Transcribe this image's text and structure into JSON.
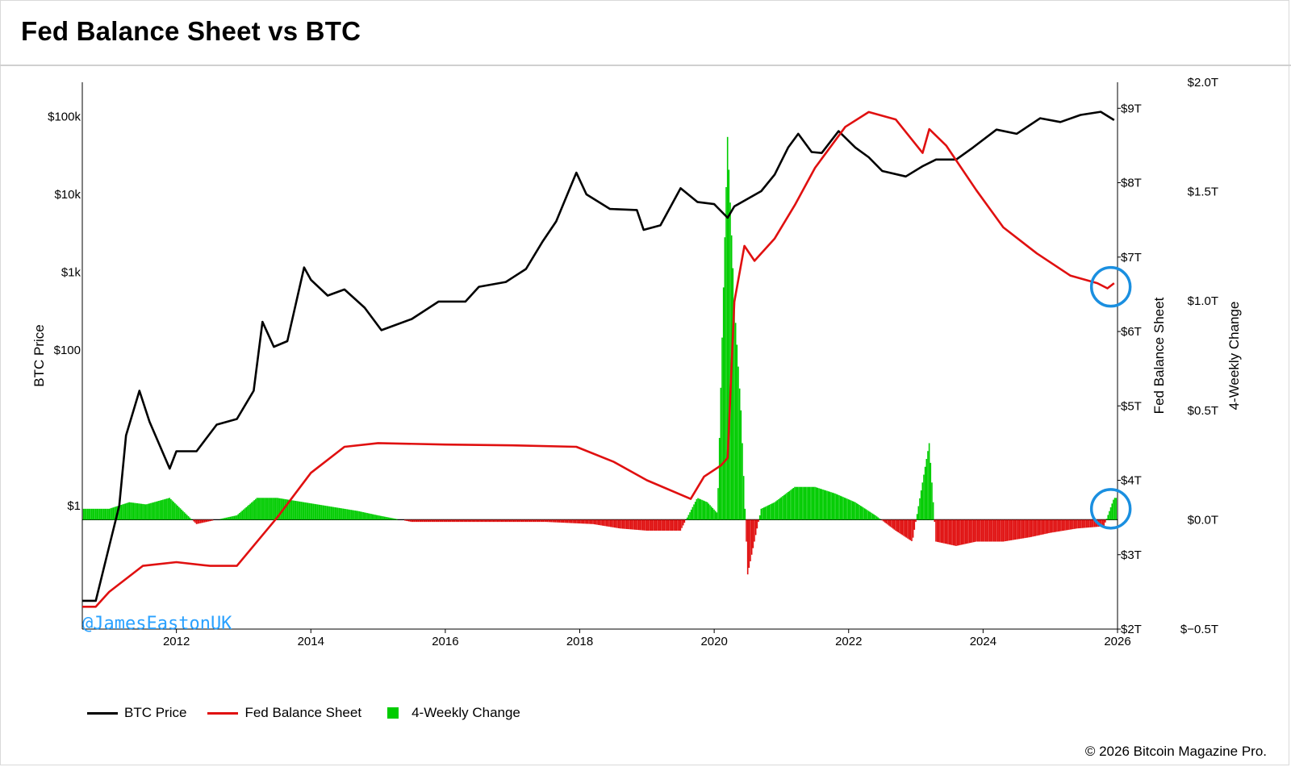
{
  "title": "Fed Balance Sheet vs BTC",
  "watermark": "@JamesEastonUK",
  "copyright": "© 2026 Bitcoin Magazine Pro.",
  "legend": [
    {
      "label": "BTC Price",
      "color": "#000000",
      "kind": "line"
    },
    {
      "label": "Fed Balance Sheet",
      "color": "#e01010",
      "kind": "line"
    },
    {
      "label": "4-Weekly Change",
      "color": "#00cc00",
      "kind": "bar"
    }
  ],
  "chart_data": {
    "type": "line",
    "x_ticks": [
      "2012",
      "2014",
      "2016",
      "2018",
      "2020",
      "2022",
      "2024",
      "2026"
    ],
    "xlim": [
      2010.6,
      2026.0
    ],
    "axes": {
      "btc": {
        "label": "BTC Price",
        "scale": "log",
        "ticks": [
          "$1",
          "$100",
          "$1k",
          "$10k",
          "$100k"
        ],
        "tick_values": [
          1,
          100,
          1000,
          10000,
          100000
        ]
      },
      "fed": {
        "label": "Fed Balance Sheet",
        "ticks": [
          "$2T",
          "$3T",
          "$4T",
          "$5T",
          "$6T",
          "$7T",
          "$8T",
          "$9T"
        ],
        "tick_values": [
          2,
          3,
          4,
          5,
          6,
          7,
          8,
          9
        ],
        "ylim": [
          2,
          9.35
        ]
      },
      "change": {
        "label": "4-Weekly Change",
        "ticks": [
          "$−0.5T",
          "$0.0T",
          "$0.5T",
          "$1.0T",
          "$1.5T",
          "$2.0T"
        ],
        "tick_values": [
          -0.5,
          0,
          0.5,
          1.0,
          1.5,
          2.0
        ],
        "ylim": [
          -0.5,
          2.0
        ]
      }
    },
    "series": [
      {
        "name": "BTC Price",
        "color": "#000000",
        "axis": "btc",
        "points": [
          [
            2010.6,
            0.06
          ],
          [
            2010.8,
            0.06
          ],
          [
            2011.0,
            0.3
          ],
          [
            2011.15,
            1.0
          ],
          [
            2011.25,
            8.0
          ],
          [
            2011.45,
            30.0
          ],
          [
            2011.6,
            12.0
          ],
          [
            2011.9,
            3.0
          ],
          [
            2012.0,
            5.0
          ],
          [
            2012.3,
            5.0
          ],
          [
            2012.6,
            11.0
          ],
          [
            2012.9,
            13.0
          ],
          [
            2013.15,
            30.0
          ],
          [
            2013.28,
            230.0
          ],
          [
            2013.45,
            110.0
          ],
          [
            2013.65,
            130.0
          ],
          [
            2013.9,
            1150.0
          ],
          [
            2014.0,
            800.0
          ],
          [
            2014.25,
            500.0
          ],
          [
            2014.5,
            600.0
          ],
          [
            2014.8,
            350.0
          ],
          [
            2015.05,
            180.0
          ],
          [
            2015.5,
            250.0
          ],
          [
            2015.9,
            420.0
          ],
          [
            2016.3,
            420.0
          ],
          [
            2016.5,
            650.0
          ],
          [
            2016.9,
            750.0
          ],
          [
            2017.2,
            1100.0
          ],
          [
            2017.45,
            2500.0
          ],
          [
            2017.65,
            4500.0
          ],
          [
            2017.95,
            19000.0
          ],
          [
            2018.1,
            10000.0
          ],
          [
            2018.45,
            6500.0
          ],
          [
            2018.85,
            6300.0
          ],
          [
            2018.95,
            3500.0
          ],
          [
            2019.2,
            4000.0
          ],
          [
            2019.5,
            12000.0
          ],
          [
            2019.75,
            8000.0
          ],
          [
            2020.0,
            7500.0
          ],
          [
            2020.2,
            5000.0
          ],
          [
            2020.3,
            7000.0
          ],
          [
            2020.7,
            11000.0
          ],
          [
            2020.9,
            18000.0
          ],
          [
            2021.1,
            40000.0
          ],
          [
            2021.25,
            60000.0
          ],
          [
            2021.45,
            35000.0
          ],
          [
            2021.6,
            34000.0
          ],
          [
            2021.85,
            65000.0
          ],
          [
            2022.1,
            40000.0
          ],
          [
            2022.3,
            30000.0
          ],
          [
            2022.5,
            20000.0
          ],
          [
            2022.85,
            17000.0
          ],
          [
            2023.1,
            23000.0
          ],
          [
            2023.3,
            28000.0
          ],
          [
            2023.6,
            28000.0
          ],
          [
            2023.85,
            40000.0
          ],
          [
            2024.2,
            68000.0
          ],
          [
            2024.5,
            60000.0
          ],
          [
            2024.85,
            95000.0
          ],
          [
            2025.15,
            85000.0
          ],
          [
            2025.45,
            105000.0
          ],
          [
            2025.75,
            115000.0
          ],
          [
            2025.95,
            90000.0
          ]
        ]
      },
      {
        "name": "Fed Balance Sheet",
        "color": "#e01010",
        "axis": "fed",
        "points": [
          [
            2010.6,
            2.3
          ],
          [
            2010.8,
            2.3
          ],
          [
            2011.0,
            2.5
          ],
          [
            2011.5,
            2.85
          ],
          [
            2012.0,
            2.9
          ],
          [
            2012.5,
            2.85
          ],
          [
            2012.9,
            2.85
          ],
          [
            2013.5,
            3.5
          ],
          [
            2014.0,
            4.1
          ],
          [
            2014.5,
            4.45
          ],
          [
            2015.0,
            4.5
          ],
          [
            2016.0,
            4.48
          ],
          [
            2017.0,
            4.47
          ],
          [
            2017.95,
            4.45
          ],
          [
            2018.5,
            4.25
          ],
          [
            2019.0,
            4.0
          ],
          [
            2019.65,
            3.75
          ],
          [
            2019.85,
            4.05
          ],
          [
            2020.1,
            4.2
          ],
          [
            2020.2,
            4.3
          ],
          [
            2020.3,
            6.4
          ],
          [
            2020.45,
            7.15
          ],
          [
            2020.6,
            6.95
          ],
          [
            2020.9,
            7.25
          ],
          [
            2021.2,
            7.7
          ],
          [
            2021.5,
            8.2
          ],
          [
            2021.95,
            8.75
          ],
          [
            2022.3,
            8.95
          ],
          [
            2022.7,
            8.85
          ],
          [
            2023.1,
            8.4
          ],
          [
            2023.2,
            8.72
          ],
          [
            2023.45,
            8.5
          ],
          [
            2023.9,
            7.9
          ],
          [
            2024.3,
            7.4
          ],
          [
            2024.8,
            7.05
          ],
          [
            2025.3,
            6.75
          ],
          [
            2025.7,
            6.65
          ],
          [
            2025.85,
            6.58
          ],
          [
            2025.95,
            6.65
          ]
        ]
      },
      {
        "name": "4-Weekly Change",
        "color": "#00cc00",
        "negative_color": "#e01010",
        "axis": "change",
        "type": "bar",
        "points": [
          [
            2011.0,
            0.05
          ],
          [
            2011.3,
            0.08
          ],
          [
            2011.55,
            0.07
          ],
          [
            2011.9,
            0.1
          ],
          [
            2012.3,
            -0.02
          ],
          [
            2012.9,
            0.02
          ],
          [
            2013.2,
            0.1
          ],
          [
            2013.5,
            0.1
          ],
          [
            2013.9,
            0.08
          ],
          [
            2014.3,
            0.06
          ],
          [
            2014.7,
            0.04
          ],
          [
            2015.0,
            0.02
          ],
          [
            2015.5,
            -0.01
          ],
          [
            2016.5,
            -0.01
          ],
          [
            2017.5,
            -0.01
          ],
          [
            2018.2,
            -0.02
          ],
          [
            2018.6,
            -0.04
          ],
          [
            2019.0,
            -0.05
          ],
          [
            2019.5,
            -0.05
          ],
          [
            2019.75,
            0.1
          ],
          [
            2019.9,
            0.08
          ],
          [
            2020.05,
            0.03
          ],
          [
            2020.2,
            1.75
          ],
          [
            2020.3,
            1.0
          ],
          [
            2020.4,
            0.5
          ],
          [
            2020.5,
            -0.25
          ],
          [
            2020.7,
            0.05
          ],
          [
            2020.9,
            0.08
          ],
          [
            2021.2,
            0.15
          ],
          [
            2021.5,
            0.15
          ],
          [
            2021.8,
            0.12
          ],
          [
            2022.1,
            0.08
          ],
          [
            2022.4,
            0.02
          ],
          [
            2022.7,
            -0.05
          ],
          [
            2022.95,
            -0.1
          ],
          [
            2023.2,
            0.35
          ],
          [
            2023.3,
            -0.1
          ],
          [
            2023.6,
            -0.12
          ],
          [
            2023.9,
            -0.1
          ],
          [
            2024.3,
            -0.1
          ],
          [
            2024.7,
            -0.08
          ],
          [
            2025.0,
            -0.06
          ],
          [
            2025.4,
            -0.04
          ],
          [
            2025.8,
            -0.03
          ],
          [
            2025.95,
            0.1
          ]
        ]
      }
    ],
    "annotations": [
      {
        "kind": "circle",
        "x": 2025.9,
        "axis": "fed",
        "y": 6.6,
        "color": "#1a8fe0"
      },
      {
        "kind": "circle",
        "x": 2025.9,
        "axis": "change",
        "y": 0.05,
        "color": "#1a8fe0"
      }
    ]
  }
}
